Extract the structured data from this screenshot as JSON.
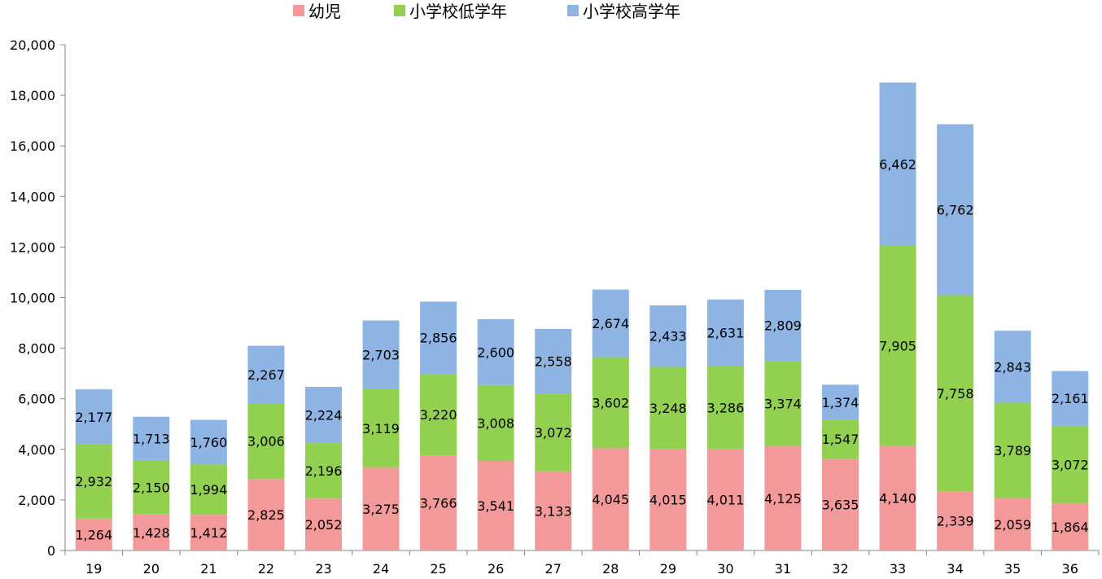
{
  "chart_data": {
    "type": "bar",
    "stacked": true,
    "title": "",
    "xlabel": "",
    "ylabel": "",
    "categories": [
      "19",
      "20",
      "21",
      "22",
      "23",
      "24",
      "25",
      "26",
      "27",
      "28",
      "29",
      "30",
      "31",
      "32",
      "33",
      "34",
      "35",
      "36"
    ],
    "series": [
      {
        "name": "幼児",
        "color": "#f4999a",
        "values": [
          1264,
          1428,
          1412,
          2825,
          2052,
          3275,
          3766,
          3541,
          3133,
          4045,
          4015,
          4011,
          4125,
          3635,
          4140,
          2339,
          2059,
          1864
        ]
      },
      {
        "name": "小学校低学年",
        "color": "#92d050",
        "values": [
          2932,
          2150,
          1994,
          3006,
          2196,
          3119,
          3220,
          3008,
          3072,
          3602,
          3248,
          3286,
          3374,
          1547,
          7905,
          7758,
          3789,
          3072
        ]
      },
      {
        "name": "小学校高学年",
        "color": "#8eb4e3",
        "values": [
          2177,
          1713,
          1760,
          2267,
          2224,
          2703,
          2856,
          2600,
          2558,
          2674,
          2433,
          2631,
          2809,
          1374,
          6462,
          6762,
          2843,
          2161
        ]
      }
    ],
    "ylim": [
      0,
      20000
    ],
    "yticks": [
      "0",
      "2,000",
      "4,000",
      "6,000",
      "8,000",
      "10,000",
      "12,000",
      "14,000",
      "16,000",
      "18,000",
      "20,000"
    ],
    "grid": false,
    "legend": "top"
  }
}
